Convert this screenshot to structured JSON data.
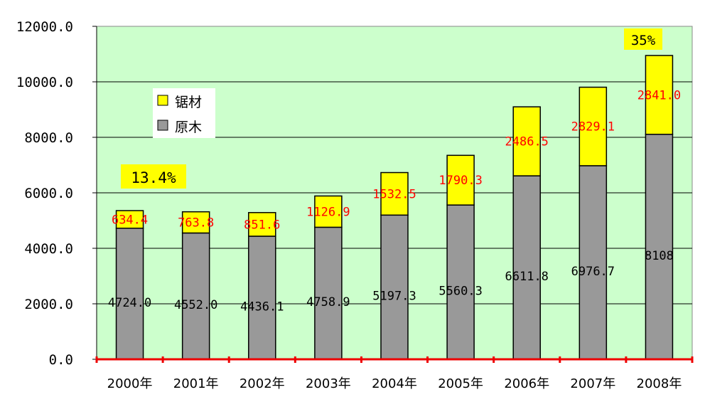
{
  "chart_data": {
    "type": "bar",
    "stacked": true,
    "title": "",
    "xlabel": "",
    "ylabel": "",
    "categories": [
      "2000年",
      "2001年",
      "2002年",
      "2003年",
      "2004年",
      "2005年",
      "2006年",
      "2007年",
      "2008年"
    ],
    "series": [
      {
        "name": "原木",
        "color": "#999999",
        "values": [
          4724.0,
          4552.0,
          4436.1,
          4758.9,
          5197.3,
          5560.3,
          6611.8,
          6976.7,
          8108
        ],
        "labels": [
          "4724.0",
          "4552.0",
          "4436.1",
          "4758.9",
          "5197.3",
          "5560.3",
          "6611.8",
          "6976.7",
          "8108"
        ]
      },
      {
        "name": "锯材",
        "color": "#ffff00",
        "values": [
          634.4,
          763.8,
          851.6,
          1126.9,
          1532.5,
          1790.3,
          2486.5,
          2829.1,
          2841.0
        ],
        "labels": [
          "634.4",
          "763.8",
          "851.6",
          "1126.9",
          "1532.5",
          "1790.3",
          "2486.5",
          "2829.1",
          "2841.0"
        ]
      }
    ],
    "ylim": [
      0,
      12000
    ],
    "yticks": [
      "0.0",
      "2000.0",
      "4000.0",
      "6000.0",
      "8000.0",
      "10000.0",
      "12000.0"
    ],
    "grid": true,
    "legend": "top-left",
    "annotations": [
      "13.4%",
      "35%"
    ],
    "colors": {
      "plot_background": "#ccffcc",
      "x_axis_line": "#ee0000",
      "segment_label": "#ff0000",
      "annotation_background": "#ffff00"
    }
  }
}
